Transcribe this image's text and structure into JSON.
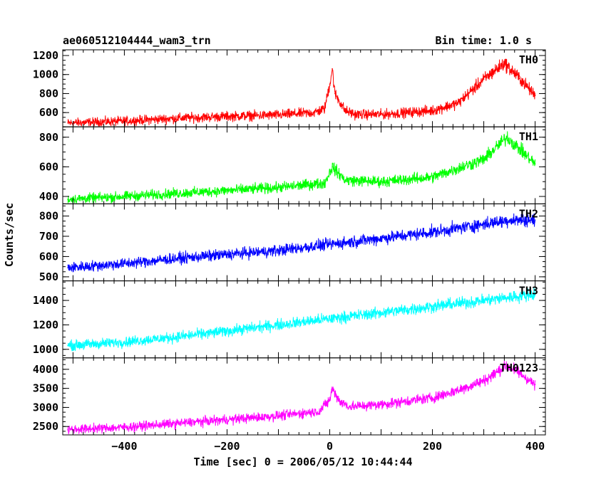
{
  "header": {
    "title": "ae060512104444_wam3_trn",
    "bin_time": "Bin time: 1.0 s"
  },
  "chart_data": {
    "type": "line",
    "title": "ae060512104444_wam3_trn",
    "subtitle": "Bin time: 1.0 s",
    "xlabel": "Time [sec] 0 = 2006/05/12 10:44:44",
    "ylabel": "Counts/sec",
    "xlim": [
      -520,
      420
    ],
    "x_ticks": [
      -400,
      -200,
      0,
      200,
      400
    ],
    "x_tick_labels": [
      "−400",
      "−200",
      "0",
      "200",
      "400"
    ],
    "grid": false,
    "panels": [
      {
        "name": "TH0",
        "color": "#ff0000",
        "ylim": [
          450,
          1260
        ],
        "y_ticks": [
          600,
          800,
          1000,
          1200
        ],
        "y_tick_labels": [
          "600",
          "800",
          "1000",
          "1200"
        ],
        "x": [
          -510,
          -400,
          -300,
          -200,
          -100,
          -30,
          -10,
          0,
          5,
          10,
          30,
          50,
          100,
          200,
          250,
          300,
          340,
          370,
          400
        ],
        "values": [
          490,
          510,
          540,
          560,
          575,
          600,
          640,
          900,
          1060,
          800,
          620,
          580,
          580,
          620,
          700,
          950,
          1120,
          960,
          780
        ]
      },
      {
        "name": "TH1",
        "color": "#00ff00",
        "ylim": [
          350,
          870
        ],
        "y_ticks": [
          400,
          600,
          800
        ],
        "y_tick_labels": [
          "400",
          "600",
          "800"
        ],
        "x": [
          -510,
          -400,
          -300,
          -200,
          -100,
          -10,
          5,
          30,
          100,
          200,
          300,
          345,
          370,
          400
        ],
        "values": [
          380,
          400,
          420,
          440,
          460,
          490,
          600,
          510,
          500,
          530,
          650,
          800,
          720,
          620
        ]
      },
      {
        "name": "TH2",
        "color": "#0000ff",
        "ylim": [
          480,
          860
        ],
        "y_ticks": [
          500,
          600,
          700,
          800
        ],
        "y_tick_labels": [
          "500",
          "600",
          "700",
          "800"
        ],
        "x": [
          -510,
          -400,
          -300,
          -200,
          -100,
          0,
          100,
          200,
          300,
          350,
          400
        ],
        "values": [
          545,
          565,
          590,
          610,
          630,
          660,
          690,
          720,
          760,
          780,
          780
        ]
      },
      {
        "name": "TH3",
        "color": "#00ffff",
        "ylim": [
          930,
          1560
        ],
        "y_ticks": [
          1000,
          1200,
          1400
        ],
        "y_tick_labels": [
          "1000",
          "1200",
          "1400"
        ],
        "x": [
          -510,
          -400,
          -300,
          -200,
          -100,
          0,
          100,
          200,
          300,
          400
        ],
        "values": [
          1030,
          1060,
          1100,
          1150,
          1200,
          1250,
          1300,
          1350,
          1400,
          1450
        ]
      },
      {
        "name": "TH0123",
        "color": "#ff00ff",
        "ylim": [
          2280,
          4300
        ],
        "y_ticks": [
          2500,
          3000,
          3500,
          4000
        ],
        "y_tick_labels": [
          "2500",
          "3000",
          "3500",
          "4000"
        ],
        "x": [
          -510,
          -400,
          -300,
          -200,
          -100,
          -20,
          0,
          5,
          20,
          40,
          100,
          200,
          250,
          300,
          345,
          370,
          400
        ],
        "values": [
          2420,
          2480,
          2580,
          2680,
          2780,
          2900,
          3200,
          3500,
          3150,
          3020,
          3080,
          3250,
          3450,
          3700,
          4100,
          3900,
          3600
        ]
      }
    ]
  }
}
